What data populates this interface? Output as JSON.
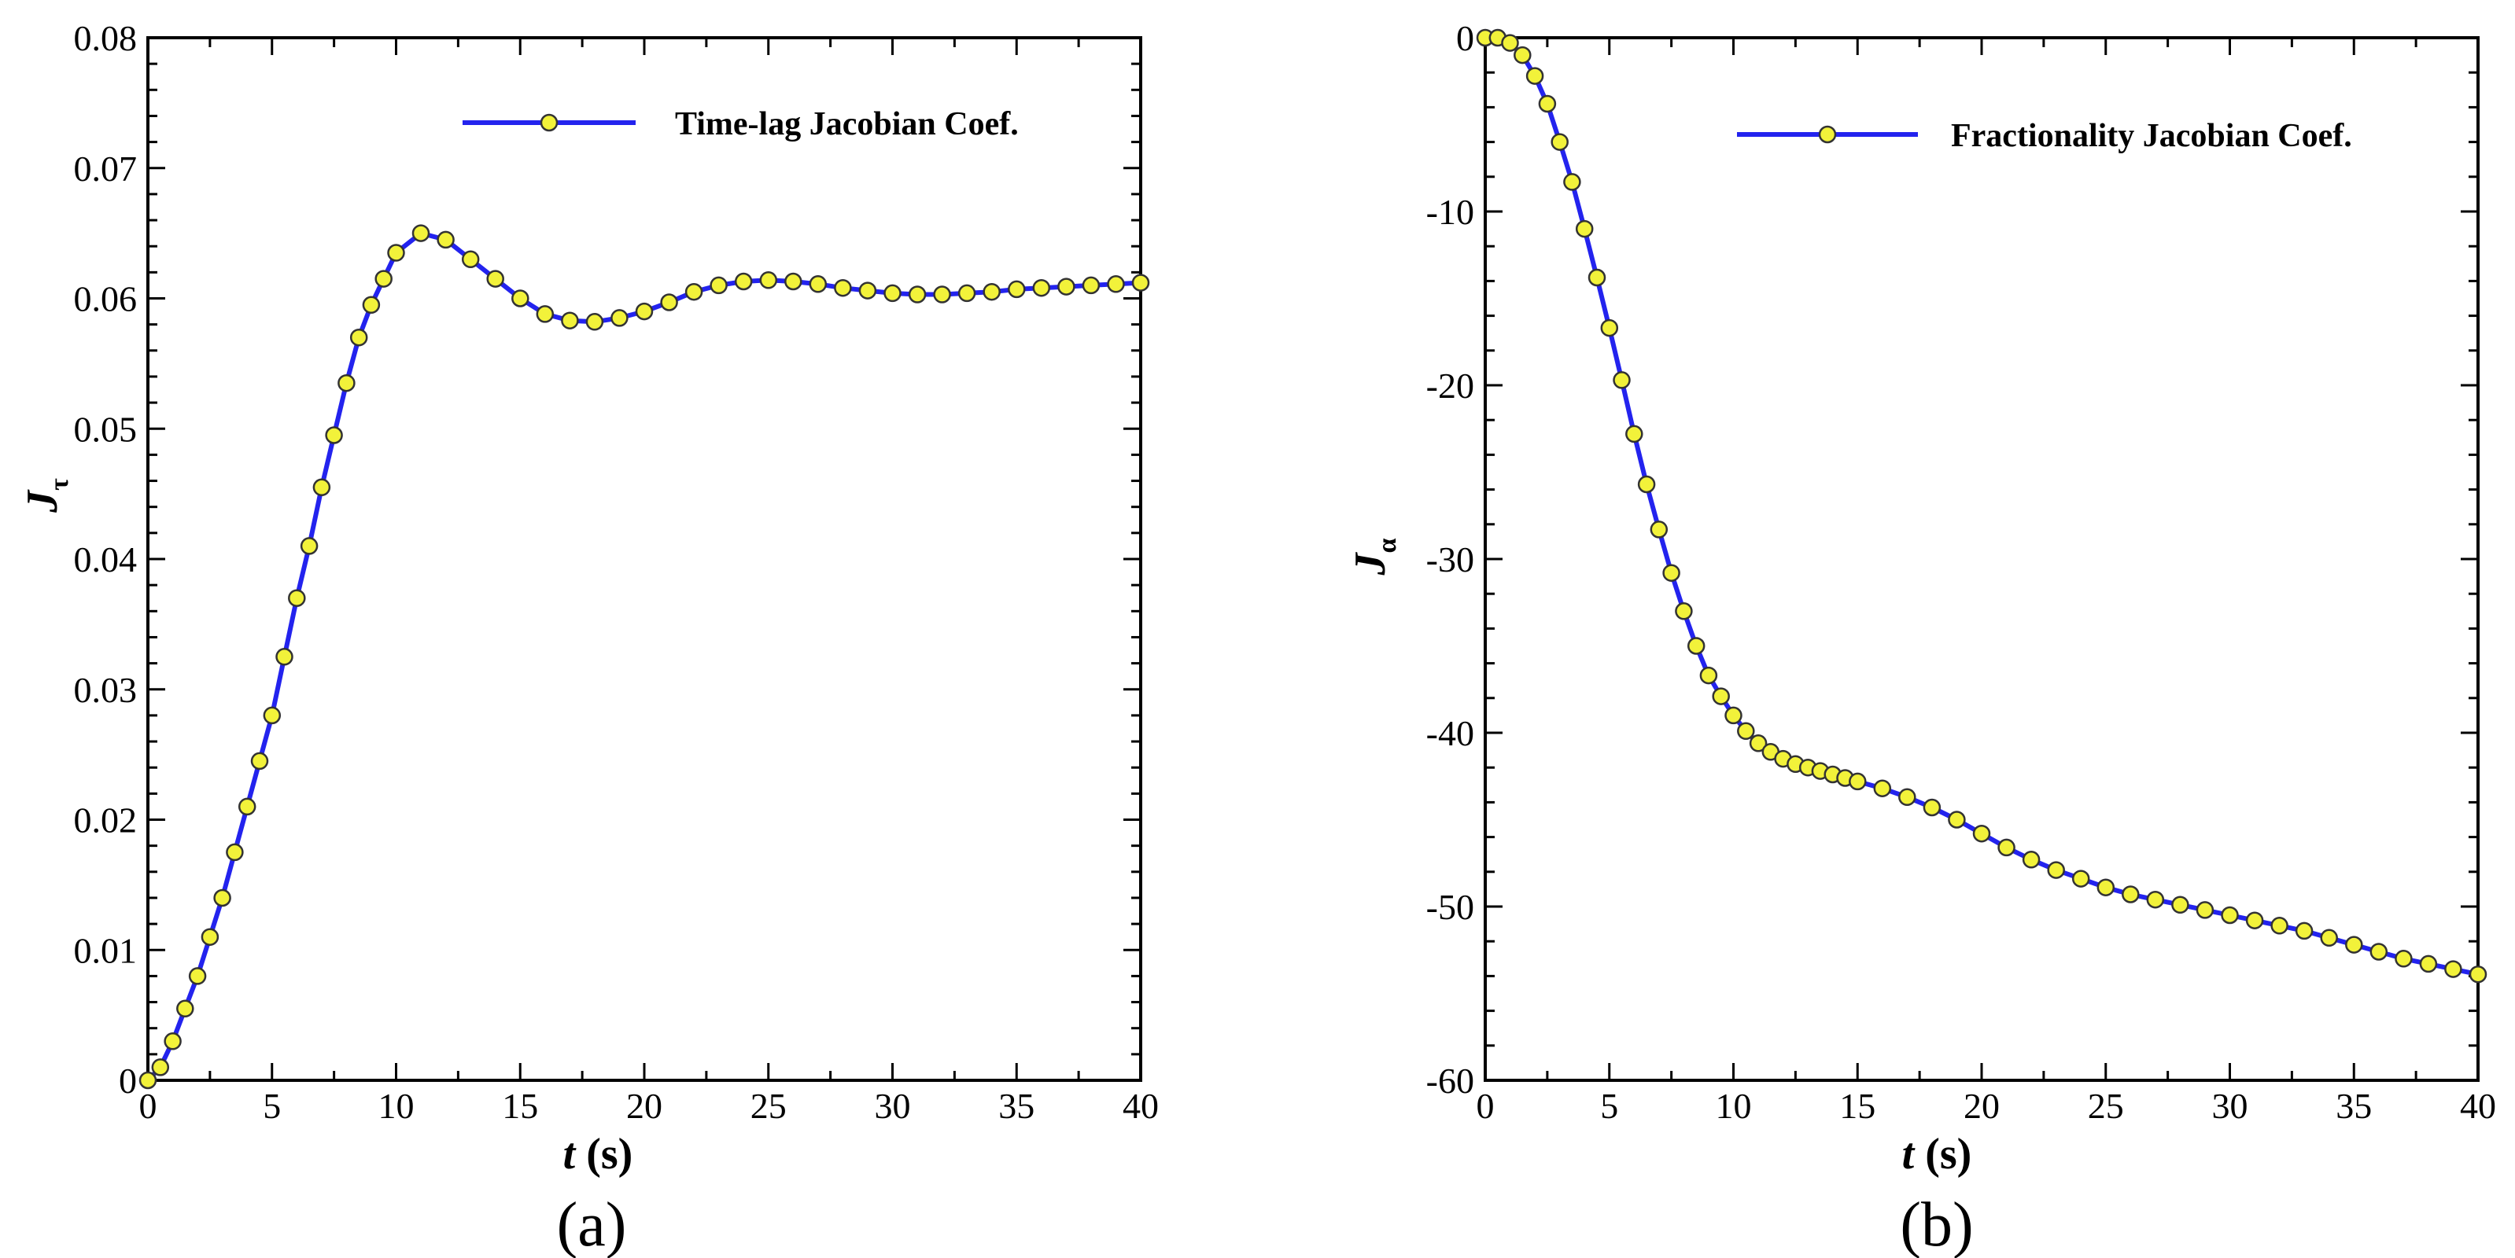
{
  "chart_data": [
    {
      "type": "line",
      "panel_label": "(a)",
      "xlabel": "t",
      "xunit": "(s)",
      "ylabel": "J",
      "ysub": "τ",
      "xlim": [
        0,
        40
      ],
      "ylim": [
        0,
        0.08
      ],
      "xticks": [
        0,
        5,
        10,
        15,
        20,
        25,
        30,
        35,
        40
      ],
      "yticks": [
        0,
        0.01,
        0.02,
        0.03,
        0.04,
        0.05,
        0.06,
        0.07,
        0.08
      ],
      "ytick_labels": [
        "0",
        "0.01",
        "0.02",
        "0.03",
        "0.04",
        "0.05",
        "0.06",
        "0.07",
        "0.08"
      ],
      "legend_position": "top-right",
      "colors": {
        "line": "#2323ee",
        "marker_fill": "#f2f23a",
        "marker_edge": "#333333"
      },
      "series": [
        {
          "name": "Time-lag  Jacobian Coef.",
          "x": [
            0,
            0.5,
            1,
            1.5,
            2,
            2.5,
            3,
            3.5,
            4,
            4.5,
            5,
            5.5,
            6,
            6.5,
            7,
            7.5,
            8,
            8.5,
            9,
            9.5,
            10,
            11,
            12,
            13,
            14,
            15,
            16,
            17,
            18,
            19,
            20,
            21,
            22,
            23,
            24,
            25,
            26,
            27,
            28,
            29,
            30,
            31,
            32,
            33,
            34,
            35,
            36,
            37,
            38,
            39,
            40
          ],
          "y": [
            0,
            0.001,
            0.003,
            0.0055,
            0.008,
            0.011,
            0.014,
            0.0175,
            0.021,
            0.0245,
            0.028,
            0.0325,
            0.037,
            0.041,
            0.0455,
            0.0495,
            0.0535,
            0.057,
            0.0595,
            0.0615,
            0.0635,
            0.065,
            0.0645,
            0.063,
            0.0615,
            0.06,
            0.0588,
            0.0583,
            0.0582,
            0.0585,
            0.059,
            0.0597,
            0.0605,
            0.061,
            0.0613,
            0.0614,
            0.0613,
            0.0611,
            0.0608,
            0.0606,
            0.0604,
            0.0603,
            0.0603,
            0.0604,
            0.0605,
            0.0607,
            0.0608,
            0.0609,
            0.061,
            0.0611,
            0.0612
          ]
        }
      ]
    },
    {
      "type": "line",
      "panel_label": "(b)",
      "xlabel": "t",
      "xunit": "(s)",
      "ylabel": "J",
      "ysub": "α",
      "xlim": [
        0,
        40
      ],
      "ylim": [
        -60,
        0
      ],
      "xticks": [
        0,
        5,
        10,
        15,
        20,
        25,
        30,
        35,
        40
      ],
      "yticks": [
        0,
        -10,
        -20,
        -30,
        -40,
        -50,
        -60
      ],
      "ytick_labels": [
        "0",
        "-10",
        "-20",
        "-30",
        "-40",
        "-50",
        "-60"
      ],
      "legend_position": "top-right",
      "colors": {
        "line": "#2323ee",
        "marker_fill": "#f2f23a",
        "marker_edge": "#333333"
      },
      "series": [
        {
          "name": "Fractionality Jacobian Coef.",
          "x": [
            0,
            0.5,
            1,
            1.5,
            2,
            2.5,
            3,
            3.5,
            4,
            4.5,
            5,
            5.5,
            6,
            6.5,
            7,
            7.5,
            8,
            8.5,
            9,
            9.5,
            10,
            10.5,
            11,
            11.5,
            12,
            12.5,
            13,
            13.5,
            14,
            14.5,
            15,
            16,
            17,
            18,
            19,
            20,
            21,
            22,
            23,
            24,
            25,
            26,
            27,
            28,
            29,
            30,
            31,
            32,
            33,
            34,
            35,
            36,
            37,
            38,
            39,
            40
          ],
          "y": [
            0,
            0,
            -0.3,
            -1,
            -2.2,
            -3.8,
            -6,
            -8.3,
            -11,
            -13.8,
            -16.7,
            -19.7,
            -22.8,
            -25.7,
            -28.3,
            -30.8,
            -33,
            -35,
            -36.7,
            -37.9,
            -39,
            -39.9,
            -40.6,
            -41.1,
            -41.5,
            -41.8,
            -42,
            -42.2,
            -42.4,
            -42.6,
            -42.8,
            -43.2,
            -43.7,
            -44.3,
            -45,
            -45.8,
            -46.6,
            -47.3,
            -47.9,
            -48.4,
            -48.9,
            -49.3,
            -49.6,
            -49.9,
            -50.2,
            -50.5,
            -50.8,
            -51.1,
            -51.4,
            -51.8,
            -52.2,
            -52.6,
            -53,
            -53.3,
            -53.6,
            -53.9
          ]
        }
      ]
    }
  ]
}
